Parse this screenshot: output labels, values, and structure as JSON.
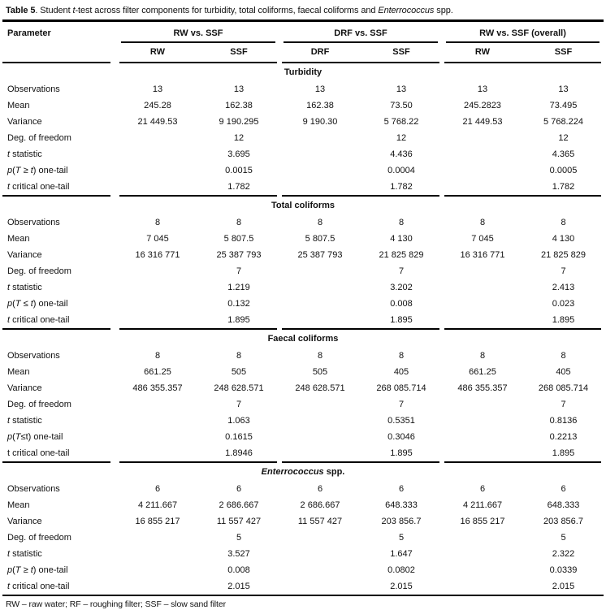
{
  "title": {
    "label": "Table 5",
    "rest": ". Student *t*-test across filter components for  turbidity, total coliforms, faecal coliforms and *Enterrococcus* spp."
  },
  "header": {
    "parameter": "Parameter",
    "groups": [
      {
        "label": "RW vs. SSF",
        "cols": [
          "RW",
          "SSF"
        ]
      },
      {
        "label": "DRF vs. SSF",
        "cols": [
          "DRF",
          "SSF"
        ]
      },
      {
        "label": "RW vs. SSF (overall)",
        "cols": [
          "RW",
          "SSF"
        ]
      }
    ]
  },
  "sections": [
    {
      "name": "Turbidity",
      "rows": [
        {
          "label": "Observations",
          "values": [
            "13",
            "13",
            "13",
            "13",
            "13",
            "13"
          ]
        },
        {
          "label": "Mean",
          "values": [
            "245.28",
            "162.38",
            "162.38",
            "73.50",
            "245.2823",
            "73.495"
          ]
        },
        {
          "label": "Variance",
          "values": [
            "21 449.53",
            "9 190.295",
            "9 190.30",
            "5 768.22",
            "21 449.53",
            "5 768.224"
          ]
        },
        {
          "label": "Deg. of freedom",
          "values": [
            "",
            "12",
            "",
            "12",
            "",
            "12"
          ]
        },
        {
          "label": "*t* statistic",
          "values": [
            "",
            "3.695",
            "",
            "4.436",
            "",
            "4.365"
          ]
        },
        {
          "label": "*p*(*T* ≥ *t*) one-tail",
          "values": [
            "",
            "0.0015",
            "",
            "0.0004",
            "",
            "0.0005"
          ]
        },
        {
          "label": "*t* critical one-tail",
          "values": [
            "",
            "1.782",
            "",
            "1.782",
            "",
            "1.782"
          ]
        }
      ]
    },
    {
      "name": "Total coliforms",
      "rows": [
        {
          "label": "Observations",
          "values": [
            "8",
            "8",
            "8",
            "8",
            "8",
            "8"
          ]
        },
        {
          "label": "Mean",
          "values": [
            "7 045",
            "5 807.5",
            "5 807.5",
            "4 130",
            "7 045",
            "4 130"
          ]
        },
        {
          "label": "Variance",
          "values": [
            "16 316 771",
            "25 387 793",
            "25 387 793",
            "21 825 829",
            "16 316 771",
            "21 825 829"
          ]
        },
        {
          "label": "Deg. of freedom",
          "values": [
            "",
            "7",
            "",
            "7",
            "",
            "7"
          ]
        },
        {
          "label": "*t* statistic",
          "values": [
            "",
            "1.219",
            "",
            "3.202",
            "",
            "2.413"
          ]
        },
        {
          "label": "*p*(*T* ≤ *t*) one-tail",
          "values": [
            "",
            "0.132",
            "",
            "0.008",
            "",
            "0.023"
          ]
        },
        {
          "label": "*t* critical one-tail",
          "values": [
            "",
            "1.895",
            "",
            "1.895",
            "",
            "1.895"
          ]
        }
      ]
    },
    {
      "name": "Faecal coliforms",
      "rows": [
        {
          "label": "Observations",
          "values": [
            "8",
            "8",
            "8",
            "8",
            "8",
            "8"
          ]
        },
        {
          "label": "Mean",
          "values": [
            "661.25",
            "505",
            "505",
            "405",
            "661.25",
            "405"
          ]
        },
        {
          "label": "Variance",
          "values": [
            "486 355.357",
            "248 628.571",
            "248 628.571",
            "268 085.714",
            "486 355.357",
            "268 085.714"
          ]
        },
        {
          "label": "Deg. of freedom",
          "values": [
            "",
            "7",
            "",
            "7",
            "",
            "7"
          ]
        },
        {
          "label": "*t* statistic",
          "values": [
            "",
            "1.063",
            "",
            "0.5351",
            "",
            "0.8136"
          ]
        },
        {
          "label": "*p*(*T*≤t) one-tail",
          "values": [
            "",
            "0.1615",
            "",
            "0.3046",
            "",
            "0.2213"
          ]
        },
        {
          "label": "t critical one-tail",
          "values": [
            "",
            "1.8946",
            "",
            "1.895",
            "",
            "1.895"
          ]
        }
      ]
    },
    {
      "name": "*Enterrococcus* spp.",
      "rows": [
        {
          "label": "Observations",
          "values": [
            "6",
            "6",
            "6",
            "6",
            "6",
            "6"
          ]
        },
        {
          "label": "Mean",
          "values": [
            "4 211.667",
            "2 686.667",
            "2 686.667",
            "648.333",
            "4 211.667",
            "648.333"
          ]
        },
        {
          "label": "Variance",
          "values": [
            "16 855 217",
            "11 557 427",
            "11 557 427",
            "203 856.7",
            "16 855 217",
            "203 856.7"
          ]
        },
        {
          "label": "Deg. of freedom",
          "values": [
            "",
            "5",
            "",
            "5",
            "",
            "5"
          ]
        },
        {
          "label": "*t* statistic",
          "values": [
            "",
            "3.527",
            "",
            "1.647",
            "",
            "2.322"
          ]
        },
        {
          "label": "*p*(*T* ≥ *t*) one-tail",
          "values": [
            "",
            "0.008",
            "",
            "0.0802",
            "",
            "0.0339"
          ]
        },
        {
          "label": "*t* critical one-tail",
          "values": [
            "",
            "2.015",
            "",
            "2.015",
            "",
            "2.015"
          ]
        }
      ]
    }
  ],
  "footnote": "RW – raw water; RF – roughing filter; SSF – slow sand filter"
}
